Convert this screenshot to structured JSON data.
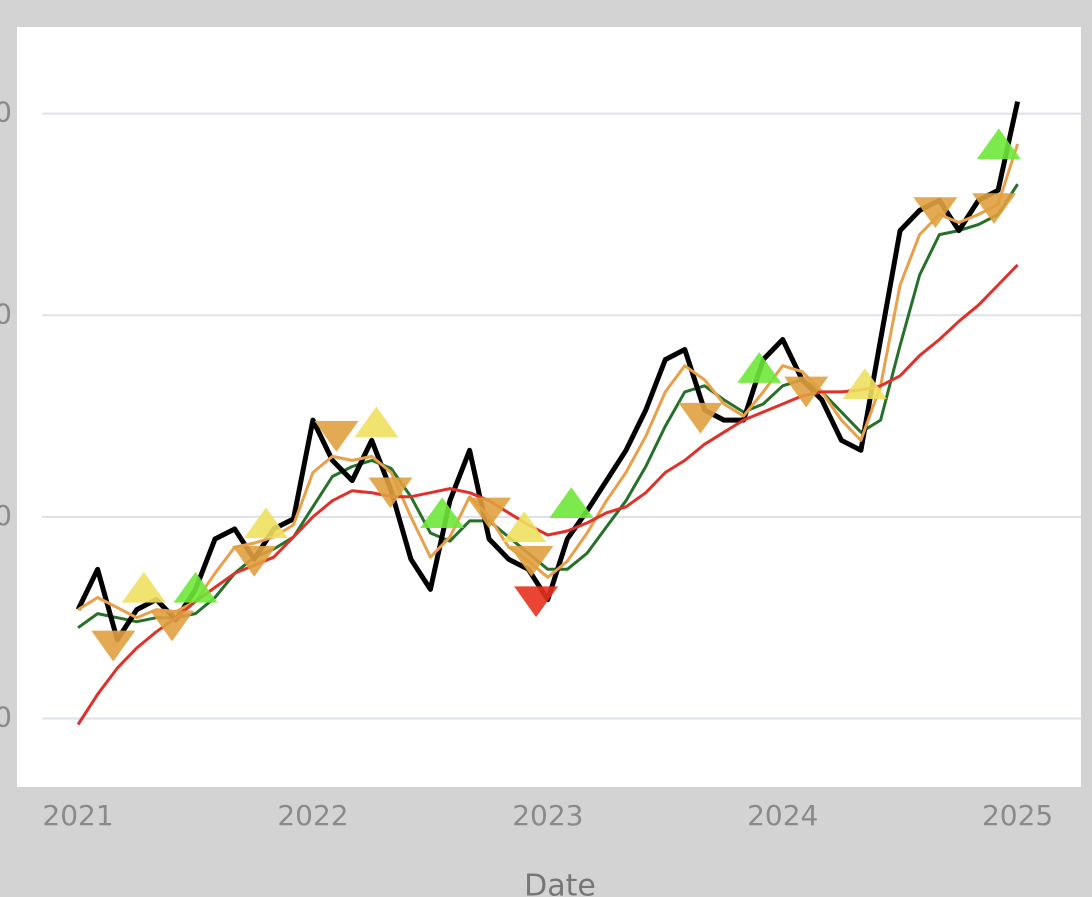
{
  "chart_data": {
    "type": "line",
    "x_label": "Date",
    "xlim": [
      2020.74,
      2025.27
    ],
    "xticks": [
      2021,
      2022,
      2023,
      2024,
      2025
    ],
    "ylim": [
      66,
      443
    ],
    "yticks": [
      {
        "value": 100,
        "label": "0"
      },
      {
        "value": 200,
        "label": "0"
      },
      {
        "value": 300,
        "label": "0"
      },
      {
        "value": 400,
        "label": "0"
      }
    ],
    "grid": true,
    "x": [
      2021,
      2021.083,
      2021.167,
      2021.25,
      2021.333,
      2021.417,
      2021.5,
      2021.583,
      2021.667,
      2021.75,
      2021.833,
      2021.917,
      2022,
      2022.083,
      2022.167,
      2022.25,
      2022.333,
      2022.417,
      2022.5,
      2022.583,
      2022.667,
      2022.75,
      2022.833,
      2022.917,
      2023,
      2023.083,
      2023.167,
      2023.25,
      2023.333,
      2023.417,
      2023.5,
      2023.583,
      2023.667,
      2023.75,
      2023.833,
      2023.917,
      2024,
      2024.083,
      2024.167,
      2024.25,
      2024.333,
      2024.417,
      2024.5,
      2024.583,
      2024.667,
      2024.75,
      2024.833,
      2024.917,
      2025
    ],
    "series": [
      {
        "color": "#26702a",
        "width": 3,
        "values": [
          145,
          152,
          150,
          148,
          150,
          150,
          152,
          160,
          172,
          180,
          184,
          190,
          205,
          220,
          225,
          228,
          224,
          210,
          192,
          188,
          198,
          198,
          190,
          182,
          174,
          174,
          182,
          195,
          208,
          225,
          245,
          262,
          265,
          258,
          252,
          256,
          265,
          268,
          262,
          252,
          242,
          248,
          285,
          320,
          340,
          342,
          345,
          350,
          365
        ]
      },
      {
        "color": "#000000",
        "width": 5,
        "values": [
          154,
          174,
          139,
          154,
          159,
          149,
          164,
          189,
          194,
          179,
          194,
          199,
          248,
          228,
          218,
          238,
          213,
          179,
          164,
          208,
          233,
          189,
          179,
          174,
          159,
          189,
          203,
          218,
          233,
          253,
          278,
          283,
          253,
          248,
          248,
          278,
          288,
          268,
          258,
          238,
          233,
          288,
          342,
          352,
          357,
          342,
          357,
          362,
          406
        ]
      },
      {
        "color": "#e8a04a",
        "width": 3,
        "values": [
          154,
          160,
          155,
          150,
          154,
          153,
          158,
          172,
          185,
          187,
          190,
          196,
          222,
          230,
          228,
          230,
          222,
          200,
          180,
          190,
          210,
          200,
          185,
          178,
          170,
          178,
          192,
          208,
          222,
          240,
          262,
          275,
          268,
          256,
          250,
          262,
          275,
          272,
          262,
          248,
          238,
          265,
          315,
          340,
          350,
          346,
          350,
          355,
          385
        ]
      },
      {
        "color": "#e0302a",
        "width": 3,
        "values": [
          97,
          112,
          125,
          135,
          143,
          150,
          158,
          165,
          172,
          176,
          180,
          190,
          200,
          208,
          213,
          212,
          210,
          210,
          212,
          214,
          212,
          208,
          202,
          196,
          191,
          193,
          197,
          202,
          205,
          212,
          222,
          228,
          236,
          242,
          248,
          252,
          256,
          260,
          262,
          262,
          263,
          265,
          270,
          280,
          288,
          297,
          305,
          315,
          325
        ]
      }
    ],
    "markers": [
      {
        "symbol": "triangle-up",
        "color": "#f0e060",
        "x": [
          2021.28,
          2021.8,
          2022.27,
          2022.9,
          2024.35
        ],
        "y": [
          164,
          196,
          246,
          194,
          265
        ]
      },
      {
        "symbol": "triangle-down",
        "color": "#e0a040",
        "x": [
          2021.15,
          2021.4,
          2021.75,
          2022.1,
          2022.33,
          2022.75,
          2022.93,
          2023.65,
          2024.1,
          2024.65,
          2024.9
        ],
        "y": [
          137,
          147,
          179,
          241,
          213,
          203,
          179,
          250,
          263,
          352,
          354
        ]
      },
      {
        "symbol": "triangle-up",
        "color": "#6ee83a",
        "x": [
          2021.5,
          2022.55,
          2023.1,
          2023.9,
          2024.92
        ],
        "y": [
          164,
          201,
          206,
          273,
          384
        ]
      },
      {
        "symbol": "triangle-down",
        "color": "#e8301e",
        "x": [
          2022.95
        ],
        "y": [
          159
        ]
      }
    ]
  }
}
